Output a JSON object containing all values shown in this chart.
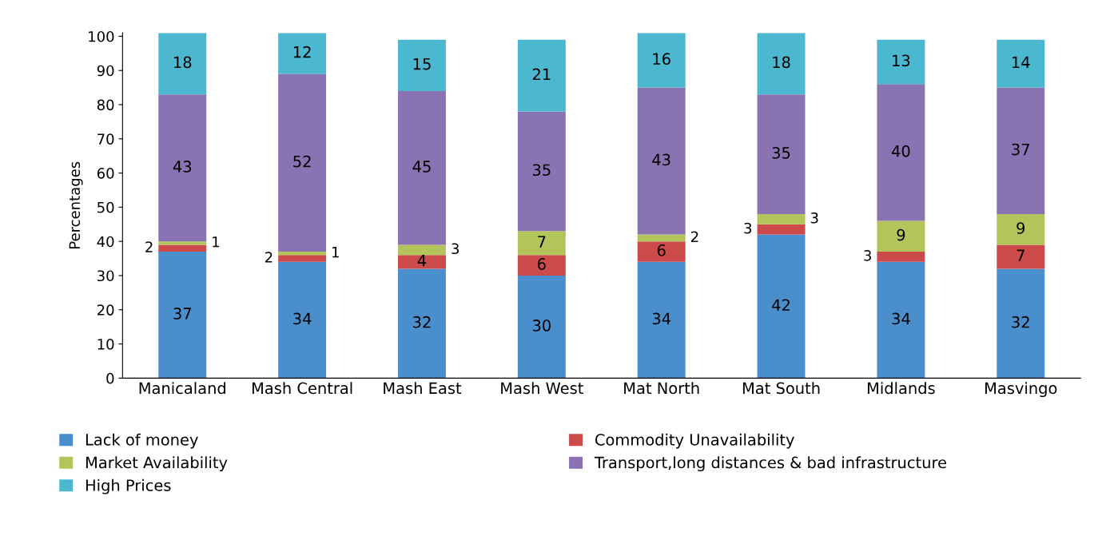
{
  "chart_data": {
    "type": "bar",
    "stacked": true,
    "ylabel": "Percentages",
    "categories": [
      "Manicaland",
      "Mash Central",
      "Mash East",
      "Mash West",
      "Mat North",
      "Mat South",
      "Midlands",
      "Masvingo"
    ],
    "series": [
      {
        "name": "Lack of money",
        "color": "#4a8fcc",
        "values": [
          37,
          34,
          32,
          30,
          34,
          42,
          34,
          32
        ]
      },
      {
        "name": "Commodity Unavailability",
        "color": "#cc4b4a",
        "values": [
          2,
          2,
          4,
          6,
          6,
          3,
          3,
          7
        ]
      },
      {
        "name": "Market Availability",
        "color": "#b3c55a",
        "values": [
          1,
          1,
          3,
          7,
          2,
          3,
          9,
          9
        ]
      },
      {
        "name": "Transport,long distances & bad infrastructure",
        "color": "#8a73b3",
        "values": [
          43,
          52,
          45,
          35,
          43,
          35,
          40,
          37
        ]
      },
      {
        "name": "High Prices",
        "color": "#4bb8cf",
        "values": [
          18,
          12,
          15,
          21,
          16,
          18,
          13,
          14
        ]
      }
    ],
    "ylim": [
      0,
      101
    ],
    "yticks": [
      0,
      10,
      20,
      30,
      40,
      50,
      60,
      70,
      80,
      90,
      100
    ],
    "data_labels": true,
    "grid": false,
    "legend": "bottom"
  }
}
